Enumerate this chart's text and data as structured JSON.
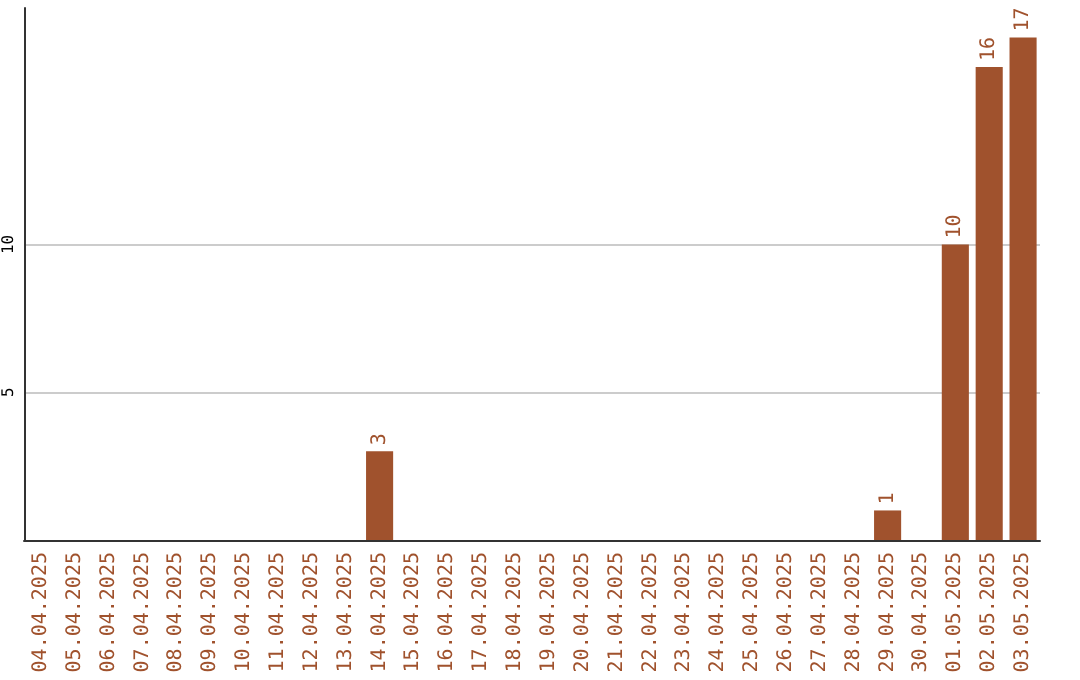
{
  "chart_data": {
    "type": "bar",
    "categories": [
      "04.04.2025",
      "05.04.2025",
      "06.04.2025",
      "07.04.2025",
      "08.04.2025",
      "09.04.2025",
      "10.04.2025",
      "11.04.2025",
      "12.04.2025",
      "13.04.2025",
      "14.04.2025",
      "15.04.2025",
      "16.04.2025",
      "17.04.2025",
      "18.04.2025",
      "19.04.2025",
      "20.04.2025",
      "21.04.2025",
      "22.04.2025",
      "23.04.2025",
      "24.04.2025",
      "25.04.2025",
      "26.04.2025",
      "27.04.2025",
      "28.04.2025",
      "29.04.2025",
      "30.04.2025",
      "01.05.2025",
      "02.05.2025",
      "03.05.2025"
    ],
    "values": [
      0,
      0,
      0,
      0,
      0,
      0,
      0,
      0,
      0,
      0,
      3,
      0,
      0,
      0,
      0,
      0,
      0,
      0,
      0,
      0,
      0,
      0,
      0,
      0,
      0,
      1,
      0,
      10,
      16,
      17
    ],
    "value_labels": [
      null,
      null,
      null,
      null,
      null,
      null,
      null,
      null,
      null,
      null,
      "3",
      null,
      null,
      null,
      null,
      null,
      null,
      null,
      null,
      null,
      null,
      null,
      null,
      null,
      null,
      "1",
      null,
      "10",
      "16",
      "17"
    ],
    "color": "#a0522d",
    "ylim": [
      0,
      18
    ],
    "yticks": [
      5,
      10
    ],
    "grid": "y"
  }
}
